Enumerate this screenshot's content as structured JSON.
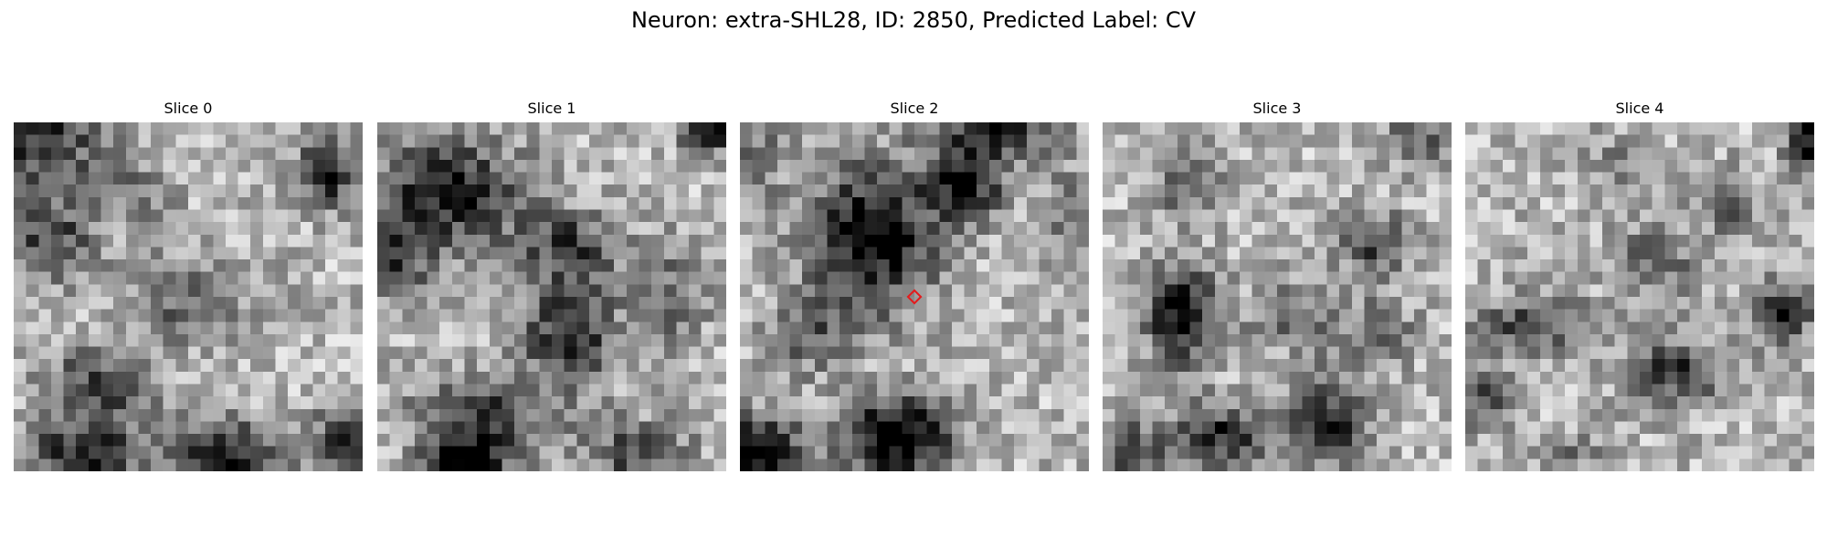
{
  "figure": {
    "title": "Neuron: extra-SHL28, ID: 2850, Predicted Label: CV"
  },
  "colormap": "gray",
  "grid_size": 28,
  "panels": [
    {
      "label": "Slice 0",
      "seed": 11,
      "blobs": [
        [
          0.08,
          0.05,
          0.22,
          0.18,
          0.55
        ],
        [
          0.9,
          0.15,
          0.12,
          0.12,
          0.6
        ],
        [
          0.1,
          0.33,
          0.18,
          0.15,
          0.45
        ],
        [
          0.5,
          0.5,
          0.22,
          0.15,
          0.35
        ],
        [
          0.25,
          0.75,
          0.2,
          0.14,
          0.45
        ],
        [
          0.6,
          0.95,
          0.2,
          0.12,
          0.65
        ],
        [
          0.2,
          0.95,
          0.2,
          0.12,
          0.6
        ],
        [
          0.95,
          0.92,
          0.12,
          0.14,
          0.55
        ],
        [
          0.35,
          0.2,
          0.15,
          0.12,
          0.2
        ]
      ]
    },
    {
      "label": "Slice 1",
      "seed": 23,
      "blobs": [
        [
          0.2,
          0.2,
          0.28,
          0.2,
          0.6
        ],
        [
          0.05,
          0.4,
          0.12,
          0.14,
          0.45
        ],
        [
          0.55,
          0.35,
          0.18,
          0.12,
          0.45
        ],
        [
          0.55,
          0.6,
          0.18,
          0.2,
          0.55
        ],
        [
          0.3,
          0.85,
          0.25,
          0.14,
          0.5
        ],
        [
          0.25,
          0.97,
          0.14,
          0.08,
          0.75
        ],
        [
          0.95,
          0.02,
          0.1,
          0.08,
          0.7
        ],
        [
          0.85,
          0.5,
          0.12,
          0.2,
          0.3
        ],
        [
          0.75,
          0.95,
          0.18,
          0.12,
          0.45
        ]
      ]
    },
    {
      "label": "Slice 2",
      "seed": 37,
      "blobs": [
        [
          0.38,
          0.33,
          0.22,
          0.26,
          0.75
        ],
        [
          0.65,
          0.17,
          0.14,
          0.14,
          0.65
        ],
        [
          0.75,
          0.02,
          0.22,
          0.1,
          0.55
        ],
        [
          0.45,
          0.9,
          0.2,
          0.14,
          0.85
        ],
        [
          0.05,
          0.95,
          0.16,
          0.14,
          0.8
        ],
        [
          0.2,
          0.6,
          0.14,
          0.14,
          0.35
        ],
        [
          0.95,
          0.3,
          0.1,
          0.2,
          0.3
        ],
        [
          0.05,
          0.1,
          0.1,
          0.14,
          0.3
        ]
      ]
    },
    {
      "label": "Slice 3",
      "seed": 53,
      "blobs": [
        [
          0.22,
          0.55,
          0.12,
          0.18,
          0.7
        ],
        [
          0.25,
          0.18,
          0.12,
          0.12,
          0.35
        ],
        [
          0.78,
          0.35,
          0.12,
          0.12,
          0.45
        ],
        [
          0.35,
          0.9,
          0.18,
          0.12,
          0.55
        ],
        [
          0.65,
          0.85,
          0.14,
          0.16,
          0.55
        ],
        [
          0.08,
          0.95,
          0.14,
          0.12,
          0.45
        ],
        [
          0.55,
          0.55,
          0.18,
          0.12,
          0.3
        ],
        [
          0.9,
          0.05,
          0.12,
          0.1,
          0.35
        ],
        [
          0.8,
          0.6,
          0.12,
          0.12,
          0.3
        ]
      ]
    },
    {
      "label": "Slice 4",
      "seed": 71,
      "blobs": [
        [
          0.98,
          0.05,
          0.08,
          0.12,
          0.65
        ],
        [
          0.75,
          0.22,
          0.1,
          0.1,
          0.5
        ],
        [
          0.9,
          0.55,
          0.12,
          0.12,
          0.55
        ],
        [
          0.2,
          0.58,
          0.22,
          0.1,
          0.45
        ],
        [
          0.6,
          0.72,
          0.18,
          0.12,
          0.5
        ],
        [
          0.05,
          0.8,
          0.12,
          0.1,
          0.4
        ],
        [
          0.55,
          0.4,
          0.14,
          0.14,
          0.35
        ],
        [
          0.3,
          0.95,
          0.14,
          0.08,
          0.25
        ],
        [
          0.45,
          0.1,
          0.12,
          0.1,
          0.2
        ]
      ]
    }
  ],
  "marker": {
    "panel_index": 2,
    "x": 0.5,
    "y": 0.5,
    "color": "#e41a1c",
    "shape": "diamond"
  }
}
